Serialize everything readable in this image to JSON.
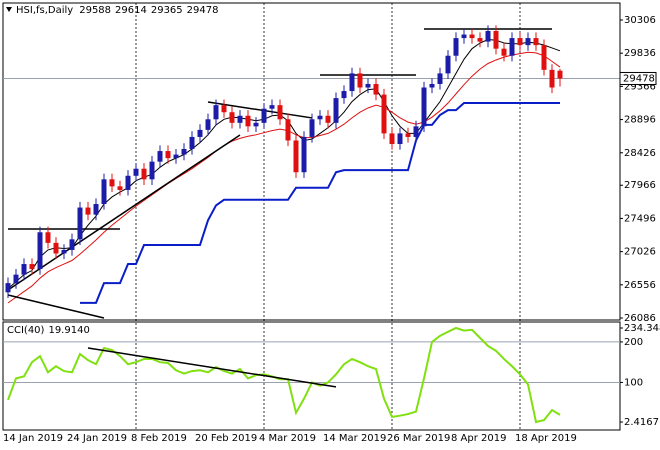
{
  "chart_data": [
    {
      "type": "candlestick",
      "title": "HSI,fs,Daily",
      "categories": [
        "14 Jan 2019",
        null,
        null,
        null,
        null,
        null,
        null,
        null,
        "24 Jan 2019",
        null,
        null,
        null,
        null,
        null,
        null,
        null,
        "8 Feb 2019",
        null,
        null,
        null,
        null,
        null,
        null,
        null,
        "20 Feb 2019",
        null,
        null,
        null,
        null,
        null,
        null,
        null,
        "4 Mar 2019",
        null,
        null,
        null,
        null,
        null,
        null,
        null,
        "14 Mar 2019",
        null,
        null,
        null,
        null,
        null,
        null,
        null,
        "26 Mar 2019",
        null,
        null,
        null,
        null,
        null,
        null,
        null,
        "8 Apr 2019",
        null,
        null,
        null,
        null,
        null,
        null,
        null,
        "18 Apr 2019",
        null,
        null,
        null,
        null,
        null
      ],
      "open": [
        26450,
        26580,
        26700,
        26850,
        26780,
        27300,
        27150,
        27000,
        27050,
        27200,
        27650,
        27550,
        27700,
        28050,
        27950,
        27900,
        28100,
        28200,
        28050,
        28300,
        28450,
        28350,
        28400,
        28480,
        28650,
        28750,
        28900,
        29100,
        29000,
        28850,
        28950,
        28800,
        28850,
        29050,
        29100,
        28900,
        28600,
        28150,
        28650,
        28900,
        28950,
        28850,
        29200,
        29300,
        29550,
        29350,
        29400,
        29250,
        28700,
        28550,
        28700,
        28650,
        28800,
        29350,
        29400,
        29550,
        29800,
        30050,
        30100,
        30050,
        30000,
        30150,
        29900,
        29800,
        30050,
        29950,
        30050,
        29950,
        29600,
        29588
      ],
      "high": [
        26660,
        26780,
        26930,
        26930,
        27380,
        27380,
        27230,
        27130,
        27280,
        27730,
        27730,
        27780,
        28130,
        28130,
        28030,
        28180,
        28280,
        28280,
        28380,
        28530,
        28530,
        28480,
        28560,
        28730,
        28830,
        28980,
        29180,
        29180,
        29080,
        29030,
        29030,
        28930,
        29130,
        29180,
        29180,
        28980,
        28680,
        28730,
        28980,
        29030,
        29030,
        29280,
        29380,
        29630,
        29630,
        29480,
        29480,
        29330,
        28780,
        28780,
        28780,
        28880,
        29430,
        29480,
        29630,
        29880,
        30130,
        30180,
        30180,
        30130,
        30230,
        30230,
        29980,
        30130,
        30130,
        30130,
        30130,
        30030,
        29680,
        29614
      ],
      "low": [
        26370,
        26500,
        26620,
        26700,
        26700,
        27070,
        26920,
        26920,
        26970,
        27120,
        27470,
        27470,
        27620,
        27870,
        27820,
        27820,
        28020,
        27970,
        27970,
        28220,
        28270,
        28270,
        28320,
        28400,
        28570,
        28670,
        28820,
        28920,
        28770,
        28770,
        28720,
        28720,
        28770,
        28970,
        28820,
        28520,
        28070,
        28070,
        28570,
        28820,
        28770,
        28770,
        29120,
        29220,
        29270,
        29270,
        29170,
        28620,
        28470,
        28470,
        28570,
        28570,
        28720,
        29270,
        29320,
        29470,
        29720,
        29970,
        29970,
        29920,
        29920,
        29820,
        29720,
        29720,
        29870,
        29870,
        29870,
        29520,
        29270,
        29365
      ],
      "close": [
        26580,
        26700,
        26850,
        26780,
        27300,
        27150,
        27000,
        27050,
        27200,
        27650,
        27550,
        27700,
        28050,
        27950,
        27900,
        28100,
        28200,
        28050,
        28300,
        28450,
        28350,
        28400,
        28480,
        28650,
        28750,
        28900,
        29100,
        29000,
        28850,
        28950,
        28800,
        28850,
        29050,
        29100,
        28900,
        28600,
        28150,
        28650,
        28900,
        28950,
        28850,
        29200,
        29300,
        29550,
        29350,
        29400,
        29250,
        28700,
        28550,
        28700,
        28650,
        28800,
        29350,
        29400,
        29550,
        29800,
        30050,
        30100,
        30050,
        30000,
        30150,
        29900,
        29800,
        30050,
        29950,
        30050,
        29950,
        29600,
        29350,
        29478
      ],
      "up_color": "#1c1ca8",
      "down_color": "#e01010",
      "overlays": [
        {
          "color": "#000000",
          "values": [
            26500,
            26600,
            26700,
            26760,
            26950,
            27050,
            27080,
            27070,
            27080,
            27250,
            27400,
            27530,
            27700,
            27800,
            27870,
            27930,
            28030,
            28080,
            28120,
            28220,
            28300,
            28350,
            28400,
            28480,
            28570,
            28680,
            28820,
            28900,
            28930,
            28920,
            28900,
            28880,
            28900,
            28950,
            28960,
            28880,
            28700,
            28600,
            28620,
            28700,
            28780,
            28880,
            29000,
            29150,
            29250,
            29320,
            29330,
            29150,
            28950,
            28800,
            28700,
            28700,
            28850,
            29000,
            29150,
            29350,
            29550,
            29750,
            29900,
            29980,
            30030,
            30020,
            29980,
            29970,
            29970,
            29990,
            29980,
            29950,
            29910,
            29870
          ]
        },
        {
          "color": "#e01010",
          "values": [
            26300,
            26380,
            26460,
            26540,
            26650,
            26740,
            26800,
            26850,
            26900,
            26990,
            27090,
            27190,
            27300,
            27400,
            27490,
            27580,
            27670,
            27750,
            27830,
            27910,
            27990,
            28060,
            28130,
            28200,
            28280,
            28360,
            28450,
            28530,
            28590,
            28630,
            28660,
            28680,
            28710,
            28740,
            28760,
            28740,
            28680,
            28640,
            28640,
            28670,
            28700,
            28760,
            28830,
            28920,
            29000,
            29060,
            29100,
            29070,
            29000,
            28920,
            28860,
            28830,
            28860,
            28930,
            29020,
            29130,
            29260,
            29390,
            29510,
            29610,
            29690,
            29740,
            29780,
            29810,
            29830,
            29850,
            29840,
            29800,
            29720,
            29640
          ]
        },
        {
          "color": "#0a1ec8",
          "values": [
            null,
            null,
            null,
            null,
            null,
            null,
            null,
            null,
            null,
            26300,
            26300,
            26300,
            26580,
            26580,
            26580,
            26850,
            26850,
            27120,
            27120,
            27120,
            27120,
            27120,
            27120,
            27120,
            27120,
            27470,
            27680,
            27760,
            27760,
            27760,
            27760,
            27760,
            27760,
            27760,
            27760,
            27760,
            27930,
            27930,
            27930,
            27930,
            27930,
            28150,
            28180,
            28180,
            28180,
            28180,
            28180,
            28180,
            28180,
            28180,
            28180,
            28600,
            28820,
            28820,
            28960,
            29030,
            29030,
            29130,
            29130,
            29130,
            29130,
            29130,
            29130,
            29130,
            29130,
            29130,
            29130,
            29130,
            29130,
            29130
          ]
        }
      ],
      "trendlines": [
        {
          "x": [
            0,
            29
          ],
          "y": [
            26483,
            28678
          ]
        },
        {
          "x": [
            0,
            12
          ],
          "y": [
            26412,
            26086
          ]
        },
        {
          "x": [
            25,
            38
          ],
          "y": [
            29145,
            28919
          ]
        },
        {
          "x": [
            0,
            14
          ],
          "y": [
            27346,
            27346
          ]
        },
        {
          "x": [
            39,
            51
          ],
          "y": [
            29527,
            29527
          ]
        },
        {
          "x": [
            52,
            68
          ],
          "y": [
            30178,
            30178
          ]
        }
      ],
      "ylim": [
        26086,
        30306
      ],
      "yticks": [
        30306,
        29836,
        29366,
        28896,
        28426,
        27966,
        27496,
        27026,
        26556,
        26086
      ]
    },
    {
      "type": "line",
      "title": "CCI(40)",
      "color": "#80e010",
      "values": [
        57,
        110,
        115,
        150,
        165,
        125,
        140,
        128,
        125,
        170,
        155,
        145,
        185,
        180,
        165,
        145,
        150,
        158,
        158,
        150,
        148,
        130,
        122,
        128,
        130,
        125,
        138,
        128,
        122,
        133,
        110,
        118,
        120,
        115,
        108,
        108,
        25,
        60,
        100,
        92,
        100,
        120,
        145,
        158,
        150,
        140,
        133,
        60,
        15,
        18,
        22,
        28,
        110,
        200,
        215,
        225,
        234.3487,
        228,
        230,
        210,
        190,
        178,
        158,
        140,
        120,
        95,
        2.4167,
        7,
        32,
        19.914
      ],
      "value_labels": [
        null,
        null,
        null,
        null,
        null,
        null,
        null,
        null,
        null,
        null,
        null,
        null,
        null,
        null,
        null,
        null,
        null,
        null,
        null,
        null,
        null,
        null,
        null,
        null,
        null,
        null,
        null,
        null,
        null,
        null,
        null,
        null,
        null,
        null,
        null,
        null,
        null,
        null,
        null,
        null,
        null,
        null,
        null,
        null,
        null,
        null,
        null,
        null,
        null,
        null,
        null,
        null,
        null,
        null,
        null,
        null,
        null,
        null,
        null,
        null,
        null,
        null,
        null,
        null,
        null,
        null,
        null,
        null,
        null,
        "19.9140"
      ],
      "trendlines": [
        {
          "x": [
            10,
            41
          ],
          "y": [
            185,
            89
          ]
        }
      ],
      "ylim": [
        2.4167,
        234.3487
      ],
      "yticks": [
        234.3487,
        200,
        100,
        2.4167
      ]
    }
  ]
}
